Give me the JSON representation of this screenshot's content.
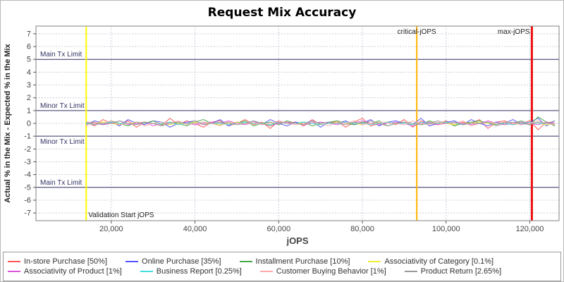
{
  "chart_data": {
    "type": "line",
    "title": "Request Mix Accuracy",
    "xlabel": "jOPS",
    "ylabel": "Actual % in the Mix - Expected % in the Mix",
    "xlim": [
      2000,
      127000
    ],
    "ylim": [
      -7.6,
      7.6
    ],
    "grid": true,
    "legend_position": "bottom",
    "x_ticks": [
      {
        "v": 20000,
        "label": "20,000"
      },
      {
        "v": 40000,
        "label": "40,000"
      },
      {
        "v": 60000,
        "label": "60,000"
      },
      {
        "v": 80000,
        "label": "80,000"
      },
      {
        "v": 100000,
        "label": "100,000"
      },
      {
        "v": 120000,
        "label": "120,000"
      }
    ],
    "y_ticks": [
      -7,
      -6,
      -5,
      -4,
      -3,
      -2,
      -1,
      0,
      1,
      2,
      3,
      4,
      5,
      6,
      7
    ],
    "limit_lines": [
      {
        "label": "Main Tx Limit",
        "y": 5,
        "side": "above"
      },
      {
        "label": "Minor Tx Limit",
        "y": 1,
        "side": "above"
      },
      {
        "label": "Minor Tx Limit",
        "y": -1,
        "side": "below"
      },
      {
        "label": "Main Tx Limit",
        "y": -5,
        "side": "above"
      }
    ],
    "vlines": [
      {
        "label": "Validation Start jOPS",
        "x": 14000,
        "color": "#ffff00",
        "width": 2,
        "label_pos": "bottom-right"
      },
      {
        "label": "critical-jOPS",
        "x": 93000,
        "color": "#ffb300",
        "width": 2,
        "label_pos": "top-center"
      },
      {
        "label": "max-jOPS",
        "x": 120500,
        "color": "#ee1111",
        "width": 3,
        "label_pos": "top-left"
      }
    ],
    "style": {
      "grid_color": "#ccccdd",
      "limit_color": "#333366",
      "axis_text_color": "#444444",
      "plot_border": "#808080",
      "vline_label_color": "#222222"
    },
    "x": [
      14000,
      16000,
      18000,
      20000,
      22000,
      24000,
      26000,
      28000,
      30000,
      32000,
      34000,
      36000,
      38000,
      40000,
      42000,
      44000,
      46000,
      48000,
      50000,
      52000,
      54000,
      56000,
      58000,
      60000,
      62000,
      64000,
      66000,
      68000,
      70000,
      72000,
      74000,
      76000,
      78000,
      80000,
      82000,
      84000,
      86000,
      88000,
      90000,
      92000,
      94000,
      96000,
      98000,
      100000,
      102000,
      104000,
      106000,
      108000,
      110000,
      112000,
      114000,
      116000,
      118000,
      120000,
      122000,
      124000,
      126000
    ],
    "series": [
      {
        "name": "In-store Purchase [50%]",
        "color": "#ff5555",
        "values": [
          0.1,
          -0.2,
          0.3,
          0,
          -0.1,
          0.2,
          -0.3,
          0.1,
          0,
          -0.2,
          0.4,
          -0.1,
          0.2,
          0,
          -0.3,
          0.1,
          0.2,
          -0.2,
          0,
          0.3,
          -0.1,
          0.1,
          -0.4,
          0.2,
          0,
          0.1,
          -0.2,
          0.3,
          -0.1,
          0,
          0.2,
          -0.3,
          0.1,
          0.4,
          -0.2,
          0,
          0.1,
          -0.1,
          0.3,
          -0.3,
          0.2,
          0,
          -0.1,
          0.2,
          -0.2,
          0.1,
          0,
          0.3,
          -0.4,
          0.1,
          0.2,
          -0.1,
          0,
          0.2,
          -0.5,
          0.1,
          -0.1
        ]
      },
      {
        "name": "Online Purchase [35%]",
        "color": "#5555ff",
        "values": [
          -0.1,
          0.2,
          0,
          0.1,
          -0.2,
          0.3,
          0,
          -0.1,
          0.2,
          0.1,
          -0.3,
          0,
          0.1,
          0.2,
          -0.1,
          0,
          0.3,
          -0.2,
          0.1,
          0,
          0.2,
          -0.1,
          0.3,
          0,
          -0.2,
          0.1,
          0,
          0.2,
          -0.3,
          0.1,
          0,
          0.2,
          -0.1,
          0,
          0.3,
          -0.2,
          0.1,
          0.2,
          0,
          -0.1,
          0.4,
          -0.2,
          0,
          0.1,
          0.2,
          -0.1,
          0.3,
          0,
          -0.2,
          0.1,
          0,
          0.3,
          -0.1,
          0.1,
          0.4,
          -0.2,
          0.2
        ]
      },
      {
        "name": "Installment Purchase [10%]",
        "color": "#44aa44",
        "values": [
          0,
          0.1,
          -0.1,
          0.2,
          0,
          -0.2,
          0.1,
          0,
          0.2,
          -0.1,
          0.1,
          0,
          -0.2,
          0.1,
          0.3,
          0,
          -0.1,
          0.1,
          0,
          0.2,
          -0.2,
          0,
          0.1,
          -0.1,
          0.2,
          0,
          0.1,
          -0.2,
          0,
          0.1,
          0.2,
          0,
          -0.1,
          0.1,
          0,
          0.2,
          -0.2,
          0,
          0.1,
          0,
          -0.1,
          0.2,
          0,
          0.1,
          -0.2,
          0,
          0.1,
          0.2,
          0,
          -0.1,
          0.1,
          0,
          0.2,
          -0.1,
          0.5,
          0.1,
          -0.2
        ]
      },
      {
        "name": "Associativity of Category [0.1%]",
        "color": "#eeee33",
        "values": [
          0,
          0,
          0.1,
          0,
          -0.1,
          0,
          0,
          0.1,
          0,
          0,
          -0.1,
          0,
          0,
          0.1,
          0,
          0,
          -0.1,
          0,
          0.1,
          0,
          0,
          0,
          -0.1,
          0,
          0.1,
          0,
          0,
          0,
          -0.1,
          0,
          0.1,
          0,
          0,
          -0.1,
          0,
          0,
          0.1,
          0,
          0,
          -0.1,
          0,
          0.1,
          0,
          0,
          -0.1,
          0,
          0,
          0.1,
          0,
          0,
          -0.1,
          0,
          0,
          0.1,
          0,
          -0.1,
          0
        ]
      },
      {
        "name": "Associativity of Product [1%]",
        "color": "#dd55dd",
        "values": [
          0.1,
          0,
          -0.1,
          0,
          0.2,
          -0.1,
          0,
          0.1,
          -0.2,
          0,
          0,
          0.1,
          0,
          -0.1,
          0,
          0.1,
          0,
          0.2,
          0,
          -0.1,
          0.1,
          0,
          -0.2,
          0,
          0.1,
          0,
          -0.1,
          0,
          0.1,
          0,
          -0.1,
          0.1,
          0,
          0.2,
          0,
          -0.1,
          0,
          0.1,
          0,
          -0.2,
          0,
          0.1,
          -0.1,
          0,
          0.1,
          0,
          -0.1,
          0,
          0.2,
          0,
          -0.1,
          0,
          0.1,
          0,
          -0.1,
          0.1,
          0
        ]
      },
      {
        "name": "Business Report [0.25%]",
        "color": "#44dddd",
        "values": [
          0,
          -0.1,
          0,
          0.1,
          0,
          0,
          -0.1,
          0.1,
          0,
          0,
          0.1,
          -0.1,
          0,
          0,
          0.1,
          0,
          0,
          -0.1,
          0,
          0.1,
          0,
          0,
          -0.1,
          0.1,
          0,
          0,
          0.1,
          0,
          -0.1,
          0,
          0,
          0.1,
          0,
          0,
          -0.1,
          0,
          0.1,
          0,
          0,
          -0.1,
          0.1,
          0,
          0,
          0.1,
          0,
          -0.1,
          0,
          0,
          0.1,
          0,
          0,
          -0.1,
          0,
          0.1,
          0,
          0,
          -0.1
        ]
      },
      {
        "name": "Customer Buying Behavior [1%]",
        "color": "#ffaaaa",
        "values": [
          -0.2,
          0.1,
          0,
          0.2,
          -0.1,
          0,
          0.1,
          -0.2,
          0,
          0.1,
          0,
          0.2,
          -0.1,
          0,
          0.1,
          0,
          -0.2,
          0.1,
          0,
          0,
          0.1,
          -0.1,
          0,
          0.2,
          0,
          -0.1,
          0,
          0.1,
          0,
          -0.2,
          0.1,
          0,
          0.2,
          -0.1,
          0,
          0.1,
          0,
          0,
          -0.1,
          0.2,
          0,
          -0.1,
          0.1,
          0,
          0,
          0.2,
          -0.2,
          0,
          0.1,
          0,
          0.1,
          0,
          -0.1,
          0,
          0.2,
          0,
          -0.1
        ]
      },
      {
        "name": "Product Return [2.65%]",
        "color": "#999999",
        "values": [
          0.1,
          -0.1,
          0,
          0,
          0.2,
          0,
          -0.1,
          0.1,
          0,
          -0.2,
          0,
          0.1,
          0,
          0.2,
          -0.1,
          0,
          0.1,
          0,
          -0.1,
          0,
          0.2,
          0,
          -0.2,
          0.1,
          0,
          0,
          -0.1,
          0.2,
          0,
          0.1,
          0,
          -0.1,
          0.1,
          0,
          0.2,
          0,
          -0.2,
          0,
          0.1,
          0,
          -0.1,
          0,
          0.2,
          0,
          0.1,
          -0.1,
          0,
          0,
          0.1,
          -0.2,
          0,
          0.1,
          0,
          -0.1,
          0.1,
          0,
          0.2
        ]
      }
    ]
  }
}
